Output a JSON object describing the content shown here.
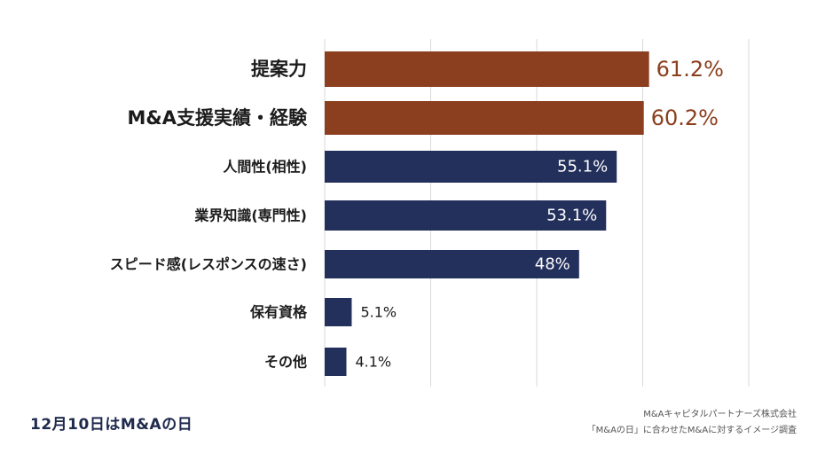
{
  "chart_data": {
    "type": "bar",
    "orientation": "horizontal",
    "categories": [
      "提案力",
      "M&A支援実績・経験",
      "人間性(相性)",
      "業界知識(専門性)",
      "スピード感(レスポンスの速さ)",
      "保有資格",
      "その他"
    ],
    "values": [
      61.2,
      60.2,
      55.1,
      53.1,
      48,
      5.1,
      4.1
    ],
    "value_labels": [
      "61.2%",
      "60.2%",
      "55.1%",
      "53.1%",
      "48%",
      "5.1%",
      "4.1%"
    ],
    "highlight": [
      true,
      true,
      false,
      false,
      false,
      false,
      false
    ],
    "xlim": [
      0,
      80
    ],
    "grid": true,
    "colors": {
      "highlight": "#8b3f1e",
      "normal": "#23305c"
    }
  },
  "footer": {
    "left_text": "12月10日はM&Aの日",
    "source_line1": "M&Aキャピタルパートナーズ株式会社",
    "source_line2": "「M&Aの日」に合わせたM&Aに対するイメージ調査"
  }
}
